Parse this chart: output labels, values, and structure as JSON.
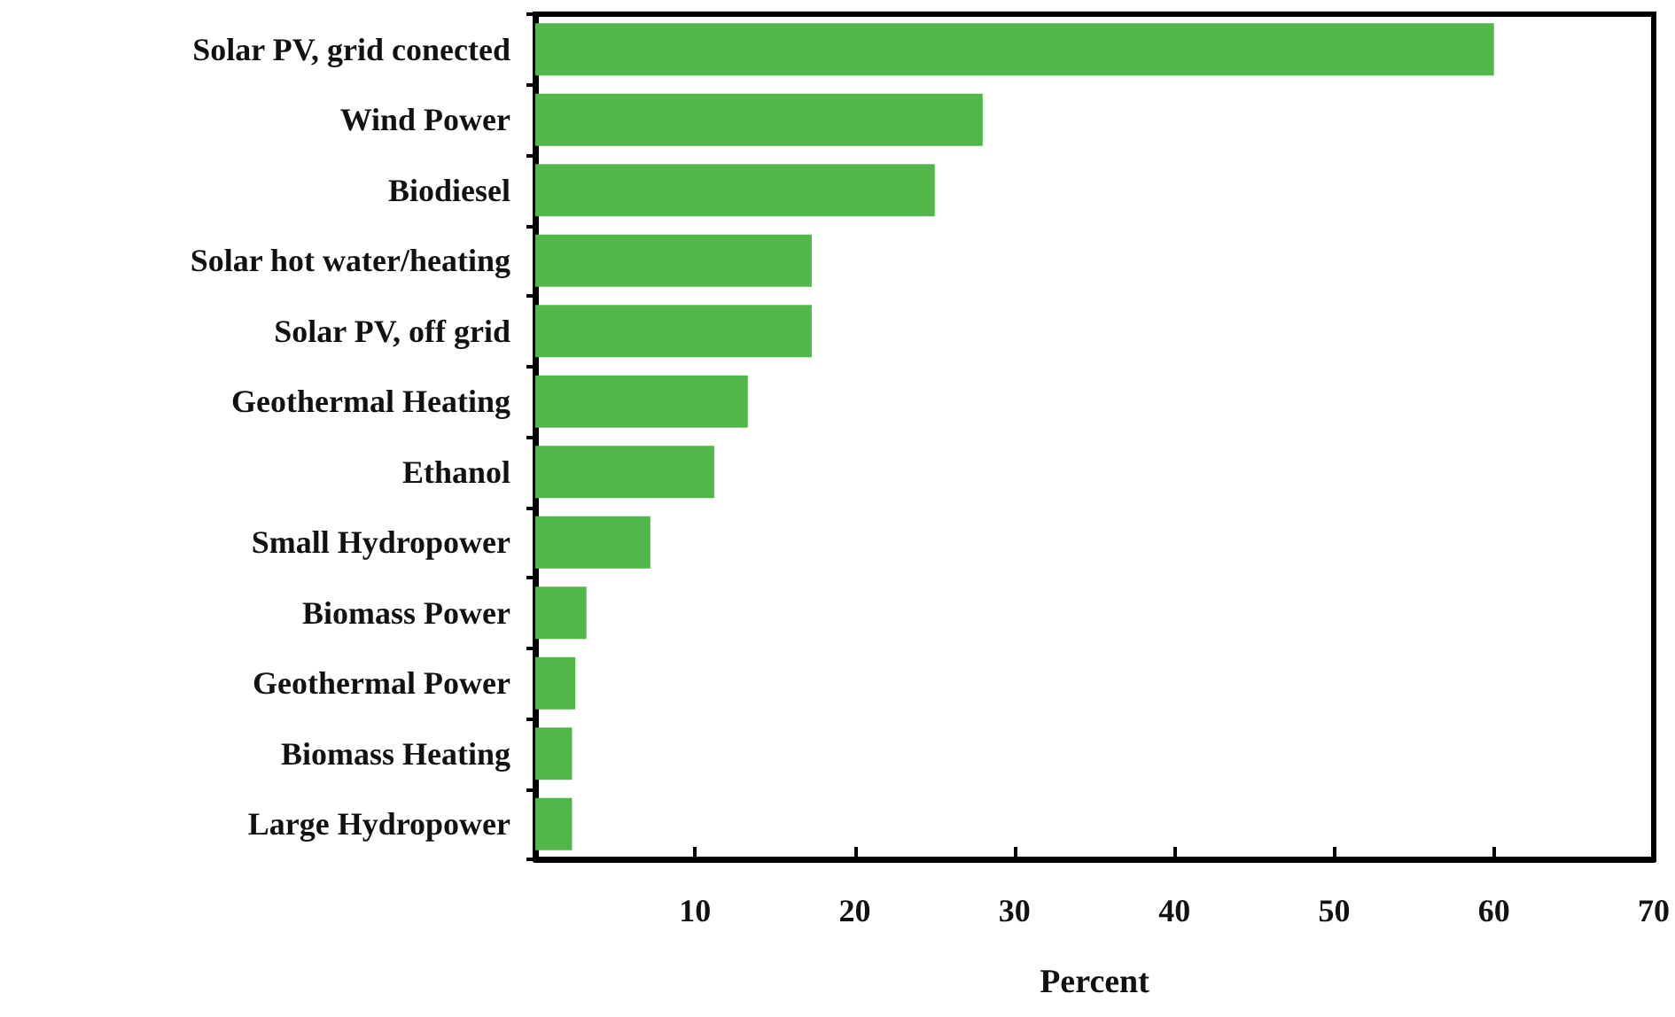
{
  "chart_data": {
    "type": "bar",
    "orientation": "horizontal",
    "categories": [
      "Solar PV, grid conected",
      "Wind Power",
      "Biodiesel",
      "Solar hot water/heating",
      "Solar PV, off grid",
      "Geothermal Heating",
      "Ethanol",
      "Small Hydropower",
      "Biomass Power",
      "Geothermal Power",
      "Biomass Heating",
      "Large Hydropower"
    ],
    "values": [
      60,
      28,
      25,
      17.3,
      17.3,
      13.3,
      11.2,
      7.2,
      3.2,
      2.5,
      2.3,
      2.3
    ],
    "color": "#52b74b",
    "xlim": [
      0,
      70
    ],
    "xticks": [
      10,
      20,
      30,
      40,
      50,
      60,
      70
    ],
    "xlabel": "Percent"
  }
}
